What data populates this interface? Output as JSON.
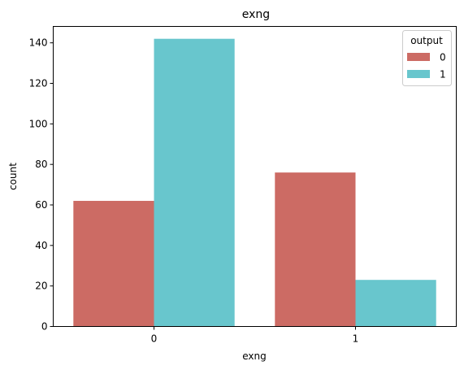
{
  "chart_data": {
    "type": "bar",
    "title": "exng",
    "xlabel": "exng",
    "ylabel": "count",
    "categories": [
      "0",
      "1"
    ],
    "series": [
      {
        "name": "0",
        "values": [
          62,
          76
        ],
        "color": "#cc6b64"
      },
      {
        "name": "1",
        "values": [
          142,
          23
        ],
        "color": "#68c6cd"
      }
    ],
    "ylim": [
      0,
      148.1
    ],
    "yticks": [
      0,
      20,
      40,
      60,
      80,
      100,
      120,
      140
    ],
    "legend": {
      "title": "output",
      "placement": "top-right"
    },
    "grid": false
  }
}
